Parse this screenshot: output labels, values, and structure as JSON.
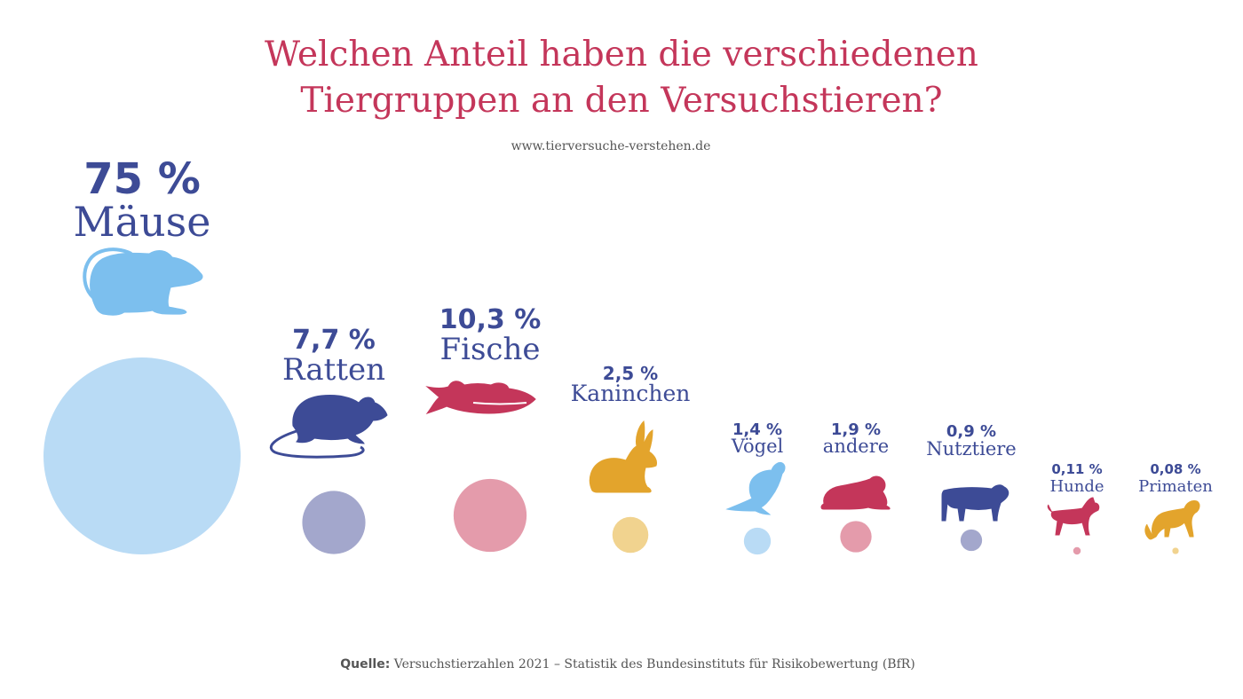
{
  "title_line1": "Welchen Anteil haben die verschiedenen",
  "title_line2": "Tiergruppen an den Versuchstieren?",
  "source_url": "www.tierversuche-verstehen.de",
  "footer": {
    "label": "Quelle:",
    "text": "Versuchstierzahlen 2021 – Statistik des Bundesinstituts für Risikobewertung (BfR)"
  },
  "colors": {
    "title": "#c4365a",
    "text": "#3d4b96",
    "light_blue": "#b9dbf5",
    "light_blue_icon": "#7cbfee",
    "navy": "#3d4b96",
    "navy_light": "#a3a7cc",
    "red": "#c4365a",
    "red_light": "#e49bab",
    "orange": "#e3a42c",
    "orange_light": "#f1d38f"
  },
  "chart_data": {
    "type": "bubble",
    "title": "Welchen Anteil haben die verschiedenen Tiergruppen an den Versuchstieren?",
    "unit": "%",
    "categories": [
      "Mäuse",
      "Ratten",
      "Fische",
      "Kaninchen",
      "Vögel",
      "andere",
      "Nutztiere",
      "Hunde",
      "Primaten"
    ],
    "values": [
      75,
      7.7,
      10.3,
      2.5,
      1.4,
      1.9,
      0.9,
      0.11,
      0.08
    ],
    "value_labels": [
      "75 %",
      "7,7 %",
      "10,3 %",
      "2,5 %",
      "1,4 %",
      "1,9 %",
      "0,9 %",
      "0,11 %",
      "0,08 %"
    ],
    "icons": [
      "mouse-icon",
      "rat-icon",
      "fish-icon",
      "rabbit-icon",
      "bird-icon",
      "frog-icon",
      "cow-icon",
      "dog-icon",
      "monkey-icon"
    ],
    "bubble_colors": [
      "#b9dbf5",
      "#a3a7cc",
      "#e49bab",
      "#f1d38f",
      "#b9dbf5",
      "#e49bab",
      "#a3a7cc",
      "#e49bab",
      "#f1d38f"
    ],
    "icon_colors": [
      "#7cbfee",
      "#3d4b96",
      "#c4365a",
      "#e3a42c",
      "#7cbfee",
      "#c4365a",
      "#3d4b96",
      "#c4365a",
      "#e3a42c"
    ]
  }
}
